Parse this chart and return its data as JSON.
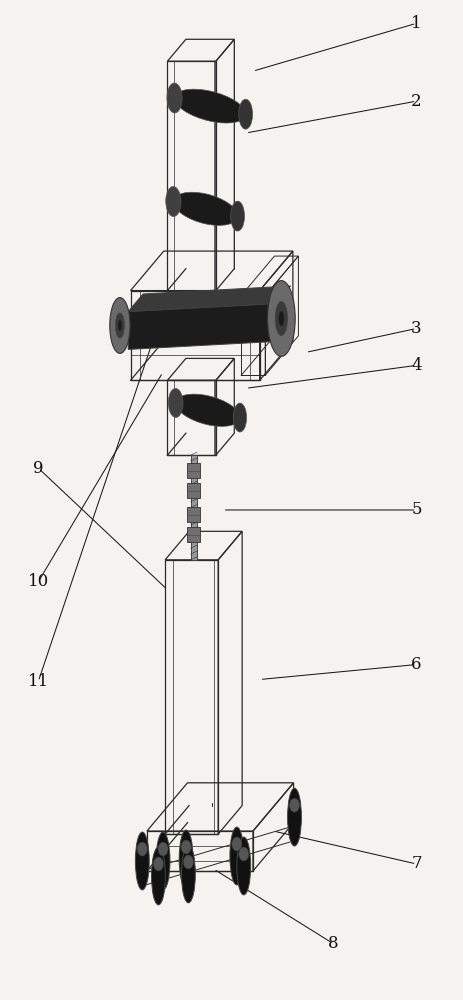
{
  "bg_color": "#f5f3ef",
  "line_color": "#2a2a2a",
  "fig_width": 4.64,
  "fig_height": 10.0,
  "label_fontsize": 12,
  "leader_color": "#1a1a1a",
  "labels": {
    "1": {
      "lp": [
        0.9,
        0.978
      ],
      "ae": [
        0.545,
        0.93
      ]
    },
    "2": {
      "lp": [
        0.9,
        0.9
      ],
      "ae": [
        0.53,
        0.868
      ]
    },
    "3": {
      "lp": [
        0.9,
        0.672
      ],
      "ae": [
        0.66,
        0.648
      ]
    },
    "4": {
      "lp": [
        0.9,
        0.635
      ],
      "ae": [
        0.53,
        0.612
      ]
    },
    "5": {
      "lp": [
        0.9,
        0.49
      ],
      "ae": [
        0.48,
        0.49
      ]
    },
    "6": {
      "lp": [
        0.9,
        0.335
      ],
      "ae": [
        0.56,
        0.32
      ]
    },
    "7": {
      "lp": [
        0.9,
        0.135
      ],
      "ae": [
        0.59,
        0.168
      ]
    },
    "8": {
      "lp": [
        0.72,
        0.055
      ],
      "ae": [
        0.46,
        0.13
      ]
    },
    "9": {
      "lp": [
        0.08,
        0.532
      ],
      "ae": [
        0.36,
        0.41
      ]
    },
    "10": {
      "lp": [
        0.08,
        0.418
      ],
      "ae": [
        0.35,
        0.628
      ]
    },
    "11": {
      "lp": [
        0.08,
        0.318
      ],
      "ae": [
        0.33,
        0.662
      ]
    }
  }
}
